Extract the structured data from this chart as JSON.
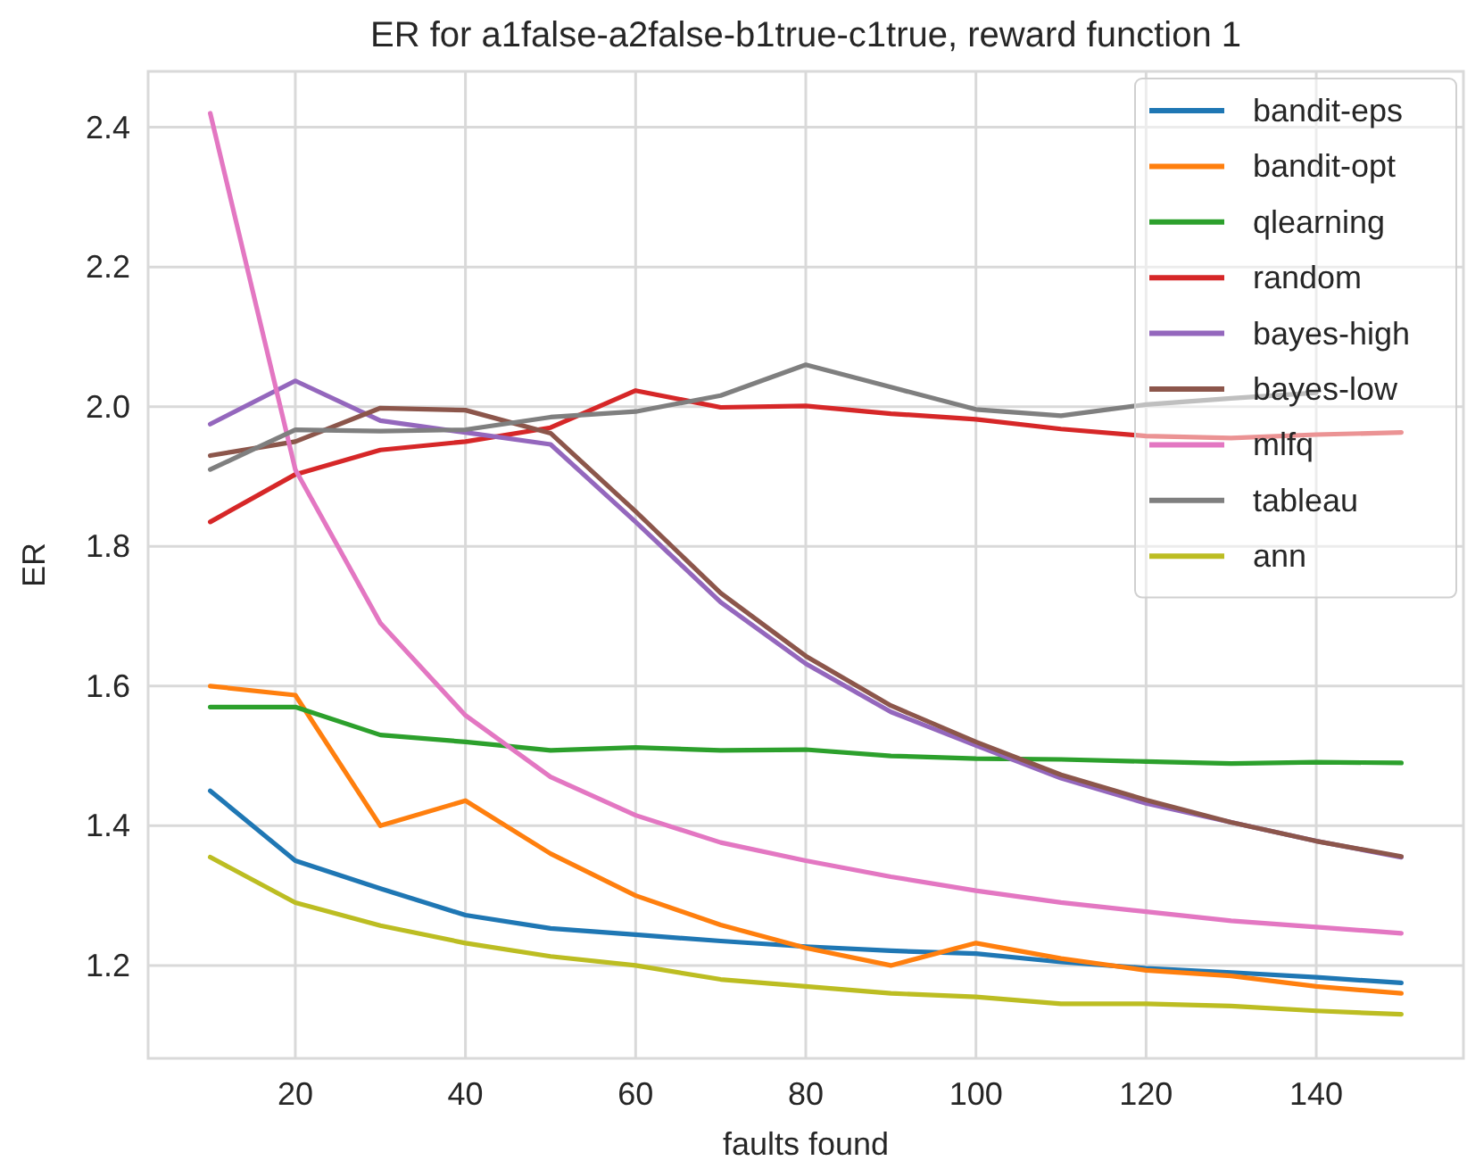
{
  "chart_data": {
    "type": "line",
    "title": "ER for a1false-a2false-b1true-c1true, reward function 1",
    "xlabel": "faults found",
    "ylabel": "ER",
    "x": [
      10,
      20,
      30,
      40,
      50,
      60,
      70,
      80,
      90,
      100,
      110,
      120,
      130,
      140,
      150
    ],
    "series": [
      {
        "name": "bandit-eps",
        "color": "#1f77b4",
        "values": [
          1.45,
          1.35,
          1.31,
          1.272,
          1.253,
          1.244,
          1.235,
          1.227,
          1.221,
          1.217,
          1.205,
          1.196,
          1.19,
          1.183,
          1.175
        ]
      },
      {
        "name": "bandit-opt",
        "color": "#ff7f0e",
        "values": [
          1.6,
          1.587,
          1.4,
          1.436,
          1.36,
          1.3,
          1.258,
          1.225,
          1.2,
          1.232,
          1.21,
          1.193,
          1.185,
          1.17,
          1.16
        ]
      },
      {
        "name": "qlearning",
        "color": "#2ca02c",
        "values": [
          1.57,
          1.57,
          1.53,
          1.52,
          1.508,
          1.512,
          1.508,
          1.509,
          1.5,
          1.496,
          1.495,
          1.492,
          1.489,
          1.491,
          1.49
        ]
      },
      {
        "name": "random",
        "color": "#d62728",
        "values": [
          1.835,
          1.903,
          1.938,
          1.95,
          1.97,
          2.023,
          1.999,
          2.001,
          1.99,
          1.982,
          1.968,
          1.958,
          1.955,
          1.96,
          1.963
        ]
      },
      {
        "name": "bayes-high",
        "color": "#9467bd",
        "values": [
          1.975,
          2.037,
          1.98,
          1.963,
          1.946,
          1.835,
          1.72,
          1.632,
          1.563,
          1.515,
          1.468,
          1.432,
          1.405,
          1.378,
          1.355
        ]
      },
      {
        "name": "bayes-low",
        "color": "#8c564b",
        "values": [
          1.93,
          1.95,
          1.998,
          1.995,
          1.962,
          1.85,
          1.733,
          1.643,
          1.572,
          1.52,
          1.473,
          1.437,
          1.405,
          1.378,
          1.356
        ]
      },
      {
        "name": "mlfq",
        "color": "#e377c2",
        "values": [
          2.42,
          1.91,
          1.69,
          1.558,
          1.47,
          1.415,
          1.376,
          1.35,
          1.327,
          1.307,
          1.29,
          1.277,
          1.264,
          1.255,
          1.246
        ]
      },
      {
        "name": "tableau",
        "color": "#7f7f7f",
        "values": [
          1.91,
          1.967,
          1.965,
          1.967,
          1.985,
          1.993,
          2.016,
          2.06,
          2.028,
          1.996,
          1.987,
          2.003,
          2.012,
          2.02,
          null
        ]
      },
      {
        "name": "ann",
        "color": "#bcbd22",
        "values": [
          1.355,
          1.29,
          1.257,
          1.232,
          1.213,
          1.2,
          1.18,
          1.17,
          1.16,
          1.155,
          1.145,
          1.145,
          1.142,
          1.135,
          1.13
        ]
      }
    ],
    "xlim": [
      2.7,
      157.3
    ],
    "ylim": [
      1.067,
      2.48
    ],
    "xticks": [
      20,
      40,
      60,
      80,
      100,
      120,
      140
    ],
    "yticks": [
      {
        "value": 1.2,
        "label": "1.2"
      },
      {
        "value": 1.4,
        "label": "1.4"
      },
      {
        "value": 1.6,
        "label": "1.6"
      },
      {
        "value": 1.8,
        "label": "1.8"
      },
      {
        "value": 2.0,
        "label": "2.0"
      },
      {
        "value": 2.2,
        "label": "2.2"
      },
      {
        "value": 2.4,
        "label": "2.4"
      }
    ],
    "grid": true,
    "legend": "top right",
    "line_style": "solid"
  }
}
